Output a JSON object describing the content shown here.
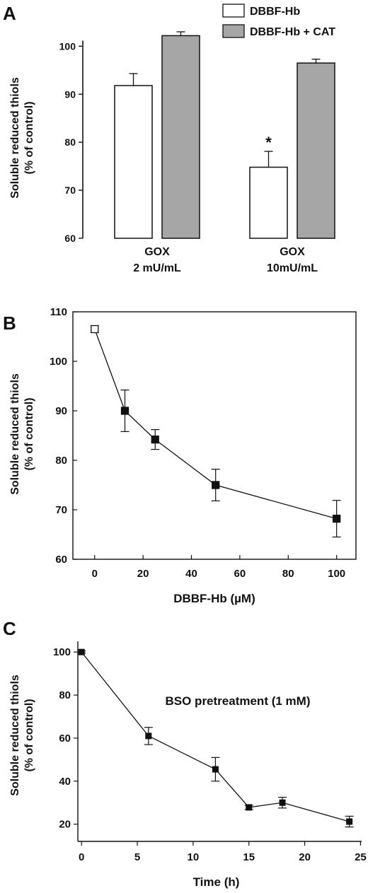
{
  "chart_data": [
    {
      "panel_label": "A",
      "type": "bar",
      "ylabel": "Soluble reduced thiols\n(% of control)",
      "xlabel": "",
      "ylim": [
        60,
        103
      ],
      "yticks": [
        60,
        70,
        80,
        90,
        100
      ],
      "categories": [
        "GOX\n2 mU/mL",
        "GOX\n10mU/mL"
      ],
      "series": [
        {
          "name": "DBBF-Hb",
          "color": "#ffffff",
          "values": [
            91.8,
            74.8
          ],
          "errors": [
            2.5,
            3.3
          ]
        },
        {
          "name": "DBBF-Hb + CAT",
          "color": "#a6a6a6",
          "values": [
            102.2,
            96.5
          ],
          "errors": [
            0.8,
            0.8
          ]
        }
      ],
      "annotations": [
        {
          "text": "*",
          "series": 0,
          "category": 1
        }
      ],
      "legend_position": "top-right"
    },
    {
      "panel_label": "B",
      "type": "line",
      "ylabel": "Soluble reduced thiols\n(% of control)",
      "xlabel": "DBBF-Hb (µM)",
      "xlim": [
        -9,
        108
      ],
      "ylim": [
        60,
        110
      ],
      "xticks": [
        0,
        20,
        40,
        60,
        80,
        100
      ],
      "yticks": [
        60,
        70,
        80,
        90,
        100,
        110
      ],
      "series": [
        {
          "x": [
            0,
            12.5,
            25,
            50,
            100
          ],
          "y": [
            106.5,
            90,
            84.2,
            75,
            68.2
          ],
          "errors": [
            0.7,
            4.2,
            2,
            3.2,
            3.7
          ],
          "open_first": true
        }
      ]
    },
    {
      "panel_label": "C",
      "type": "line",
      "ylabel": "Soluble reduced thiols\n(% of control)",
      "xlabel": "Time (h)",
      "xlim": [
        0,
        25
      ],
      "ylim": [
        12,
        105
      ],
      "xticks": [
        0,
        5,
        10,
        15,
        20,
        25
      ],
      "yticks": [
        20,
        40,
        60,
        80,
        100
      ],
      "annotation": "BSO pretreatment (1 mM)",
      "series": [
        {
          "x": [
            0,
            6,
            12,
            15,
            18,
            24
          ],
          "y": [
            100,
            61,
            45.5,
            27.8,
            30,
            21.2
          ],
          "errors": [
            0.5,
            4,
            5.5,
            1,
            2.5,
            2.5
          ]
        }
      ]
    }
  ]
}
